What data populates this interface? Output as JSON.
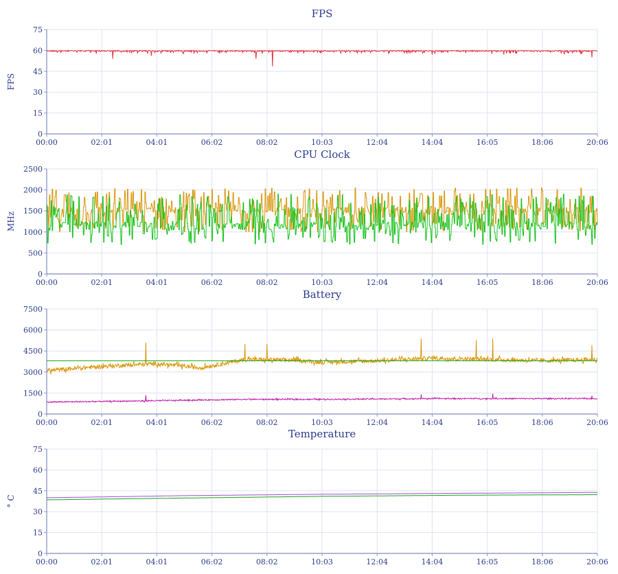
{
  "chart_data": [
    {
      "type": "line",
      "title": "FPS",
      "ylabel": "FPS",
      "ylim": [
        0,
        75
      ],
      "yticks": [
        0,
        15,
        30,
        45,
        60,
        75
      ],
      "xticks": [
        "00:00",
        "02:01",
        "04:01",
        "06:02",
        "08:02",
        "10:03",
        "12:04",
        "14:04",
        "16:05",
        "18:06",
        "20:06"
      ],
      "x_range_seconds": [
        0,
        1206
      ],
      "series": [
        {
          "color": "#e8303a",
          "base": 60,
          "noise": 1.2,
          "baseline_y": [
            0,
            0,
            0,
            0,
            0,
            0,
            0,
            0,
            0,
            0,
            0
          ],
          "spikes": [
            [
              0.12,
              54
            ],
            [
              0.38,
              54
            ],
            [
              0.41,
              48.5
            ],
            [
              0.19,
              56
            ],
            [
              0.7,
              57
            ],
            [
              0.83,
              57
            ],
            [
              0.99,
              55
            ]
          ]
        }
      ]
    },
    {
      "type": "line",
      "title": "CPU Clock",
      "ylabel": "MHz",
      "ylim": [
        0,
        2500
      ],
      "yticks": [
        0,
        500,
        1000,
        1500,
        2000,
        2500
      ],
      "xticks": [
        "00:00",
        "02:01",
        "04:01",
        "06:02",
        "08:02",
        "10:03",
        "12:04",
        "14:04",
        "16:05",
        "18:06",
        "20:06"
      ],
      "x_range_seconds": [
        0,
        1206
      ],
      "series": [
        {
          "color": "#d9960a",
          "min": 1000,
          "max": 2050,
          "typical": 1500
        },
        {
          "color": "#16c21a",
          "min": 700,
          "max": 1900,
          "typical": 1150
        }
      ]
    },
    {
      "type": "line",
      "title": "Battery",
      "ylabel": "",
      "ylim": [
        0,
        7500
      ],
      "yticks": [
        0,
        1500,
        3000,
        4500,
        6000,
        7500
      ],
      "xticks": [
        "00:00",
        "02:01",
        "04:01",
        "06:02",
        "08:02",
        "10:03",
        "12:04",
        "14:04",
        "16:05",
        "18:06",
        "20:06"
      ],
      "x_range_seconds": [
        0,
        1206
      ],
      "series": [
        {
          "color": "#d9960a",
          "trend": [
            [
              0,
              3100
            ],
            [
              0.1,
              3400
            ],
            [
              0.2,
              3600
            ],
            [
              0.28,
              3300
            ],
            [
              0.36,
              3900
            ],
            [
              0.45,
              3850
            ],
            [
              0.5,
              3700
            ],
            [
              0.6,
              3800
            ],
            [
              0.7,
              4000
            ],
            [
              0.8,
              3900
            ],
            [
              0.9,
              3800
            ],
            [
              1.0,
              3900
            ]
          ],
          "noise": 300,
          "spikes": [
            [
              0.18,
              5100
            ],
            [
              0.36,
              5000
            ],
            [
              0.4,
              5000
            ],
            [
              0.68,
              5400
            ],
            [
              0.78,
              5300
            ],
            [
              0.81,
              5400
            ],
            [
              0.99,
              4900
            ]
          ]
        },
        {
          "color": "#17a81b",
          "constant": 3800
        },
        {
          "color": "#c21aa8",
          "trend": [
            [
              0,
              850
            ],
            [
              0.2,
              950
            ],
            [
              0.36,
              1050
            ],
            [
              0.5,
              1050
            ],
            [
              0.7,
              1100
            ],
            [
              1.0,
              1100
            ]
          ],
          "noise": 80,
          "spikes": [
            [
              0.18,
              1350
            ],
            [
              0.68,
              1400
            ],
            [
              0.81,
              1450
            ],
            [
              0.99,
              1300
            ]
          ]
        }
      ]
    },
    {
      "type": "line",
      "title": "Temperature",
      "ylabel": "° C",
      "ylim": [
        0,
        75
      ],
      "yticks": [
        0,
        15,
        30,
        45,
        60,
        75
      ],
      "xticks": [
        "00:00",
        "02:01",
        "04:01",
        "06:02",
        "08:02",
        "10:03",
        "12:04",
        "14:04",
        "16:05",
        "18:06",
        "20:06"
      ],
      "x_range_seconds": [
        0,
        1206
      ],
      "series": [
        {
          "color": "#9b4dd6",
          "trend": [
            [
              0,
              40
            ],
            [
              0.25,
              41.5
            ],
            [
              0.5,
              42.5
            ],
            [
              0.75,
              43.2
            ],
            [
              1.0,
              43.8
            ]
          ]
        },
        {
          "color": "#1ba01b",
          "trend": [
            [
              0,
              38.5
            ],
            [
              0.25,
              39.8
            ],
            [
              0.5,
              41
            ],
            [
              0.75,
              41.8
            ],
            [
              1.0,
              42.2
            ]
          ]
        }
      ]
    }
  ]
}
